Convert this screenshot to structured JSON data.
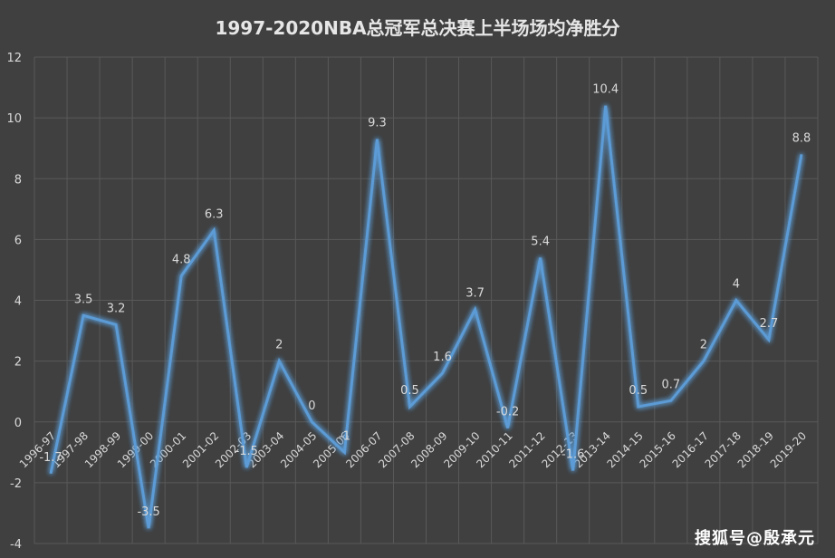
{
  "chart_data": {
    "type": "line",
    "title": "1997-2020NBA总冠军总决赛上半场场均净胜分",
    "xlabel": "",
    "ylabel": "",
    "ylim": [
      -4,
      12
    ],
    "yticks": [
      -4,
      -2,
      0,
      2,
      4,
      6,
      8,
      10,
      12
    ],
    "grid": true,
    "legend": "none",
    "line_color": "#5B9BD5",
    "categories": [
      "1996-97",
      "1997-98",
      "1998-99",
      "1999-00",
      "2000-01",
      "2001-02",
      "2002-03",
      "2003-04",
      "2004-05",
      "2005-06",
      "2006-07",
      "2007-08",
      "2008-09",
      "2009-10",
      "2010-11",
      "2011-12",
      "2012-13",
      "2013-14",
      "2014-15",
      "2015-16",
      "2016-17",
      "2017-18",
      "2018-19",
      "2019-20"
    ],
    "values": [
      -1.7,
      3.5,
      3.2,
      -3.5,
      4.8,
      6.3,
      -1.5,
      2,
      0,
      -1,
      9.3,
      0.5,
      1.6,
      3.7,
      -0.2,
      5.4,
      -1.6,
      10.4,
      0.5,
      0.7,
      2,
      4,
      2.7,
      8.8
    ]
  },
  "watermark": "搜狐号@殷承元"
}
